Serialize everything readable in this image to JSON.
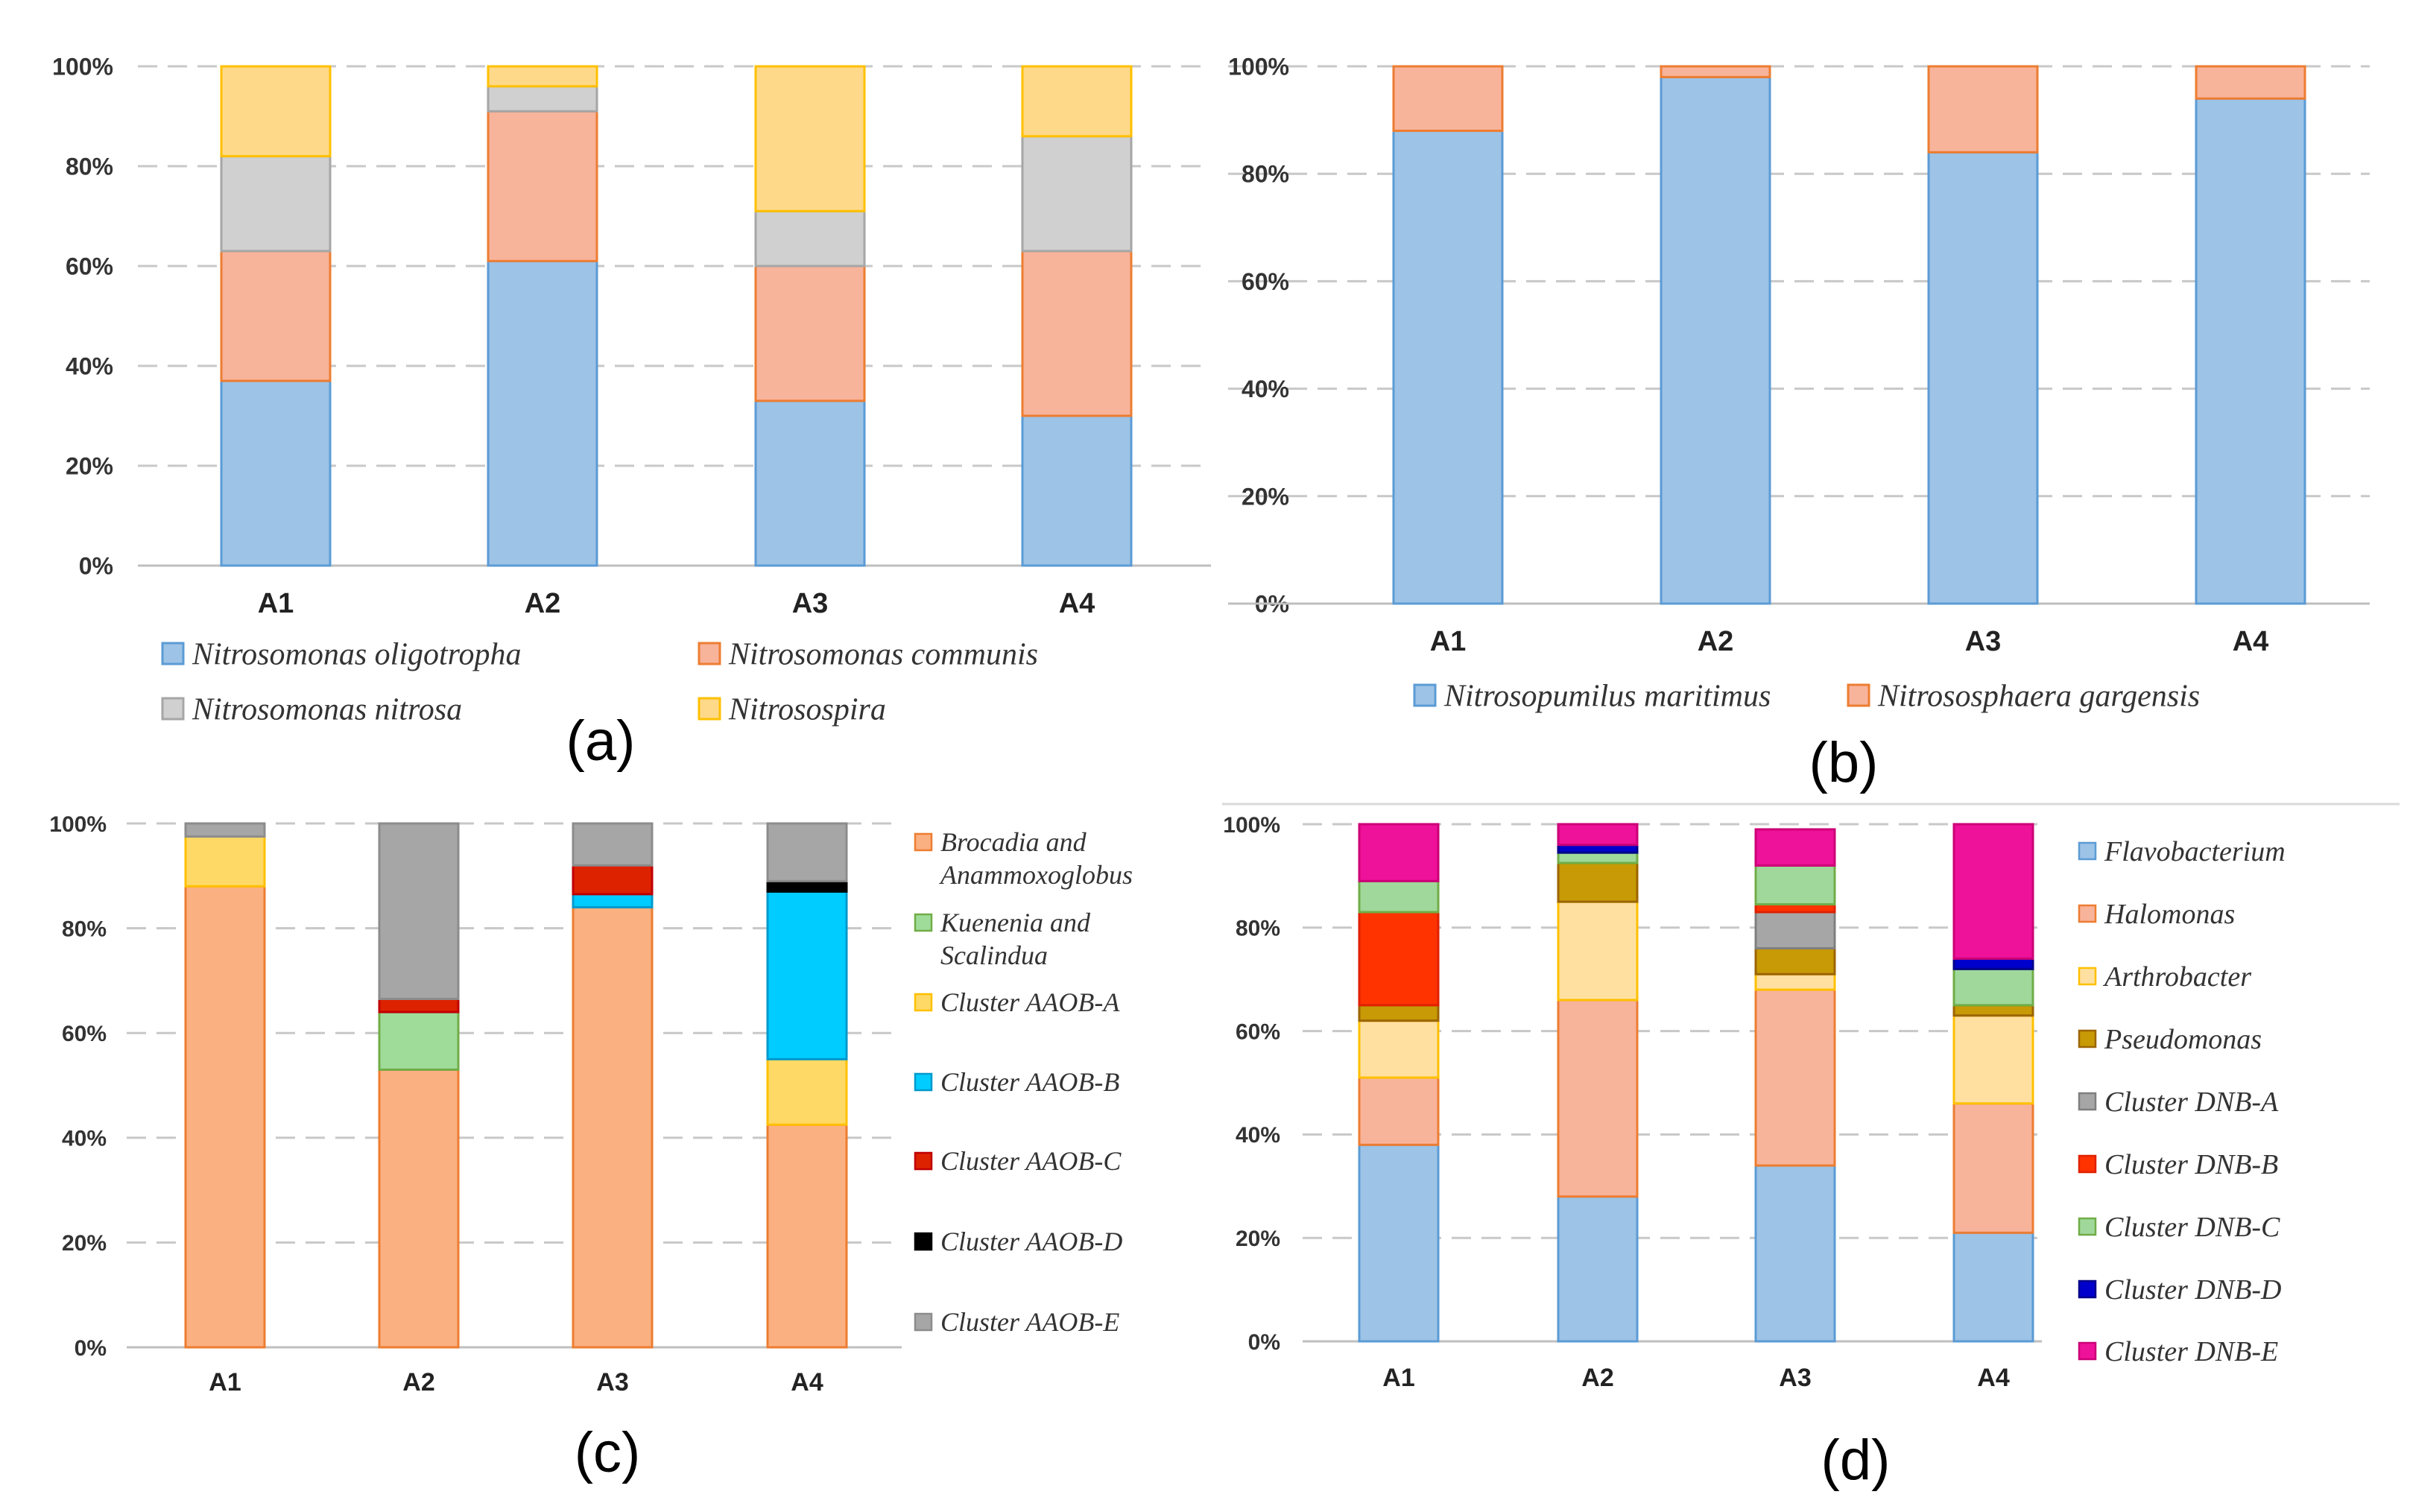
{
  "figure": {
    "panels": [
      {
        "label": "(a)"
      },
      {
        "label": "(b)"
      },
      {
        "label": "(c)"
      },
      {
        "label": "(d)"
      }
    ]
  },
  "chart_data": [
    {
      "type": "bar",
      "stacked": true,
      "panel_label": "(a)",
      "categories": [
        "A1",
        "A2",
        "A3",
        "A4"
      ],
      "ylim": [
        0,
        100
      ],
      "yticks": [
        "0%",
        "20%",
        "40%",
        "60%",
        "80%",
        "100%"
      ],
      "grid": true,
      "legend_position": "bottom",
      "series": [
        {
          "name": "Nitrosomonas oligotropha",
          "values": [
            37,
            61,
            33,
            30
          ],
          "fill": "#9dc3e6",
          "stroke": "#5b9bd5"
        },
        {
          "name": "Nitrosomonas communis",
          "values": [
            26,
            30,
            27,
            33
          ],
          "fill": "#f8b39b",
          "stroke": "#ed7d31"
        },
        {
          "name": "Nitrosomonas nitrosa",
          "values": [
            19,
            5,
            11,
            23
          ],
          "fill": "#d0d0d0",
          "stroke": "#a6a6a6"
        },
        {
          "name": "Nitrosospira",
          "values": [
            18,
            4,
            29,
            14
          ],
          "fill": "#ffd98a",
          "stroke": "#ffc000"
        }
      ]
    },
    {
      "type": "bar",
      "stacked": true,
      "panel_label": "(b)",
      "categories": [
        "A1",
        "A2",
        "A3",
        "A4"
      ],
      "ylim": [
        0,
        100
      ],
      "yticks": [
        "0%",
        "20%",
        "40%",
        "60%",
        "80%",
        "100%"
      ],
      "grid": true,
      "legend_position": "bottom",
      "series": [
        {
          "name": "Nitrosopumilus maritimus",
          "values": [
            88,
            98,
            84,
            94
          ],
          "fill": "#9dc3e6",
          "stroke": "#5b9bd5"
        },
        {
          "name": "Nitrososphaera gargensis",
          "values": [
            12,
            2,
            16,
            6
          ],
          "fill": "#f8b39b",
          "stroke": "#ed7d31"
        }
      ]
    },
    {
      "type": "bar",
      "stacked": true,
      "panel_label": "(c)",
      "categories": [
        "A1",
        "A2",
        "A3",
        "A4"
      ],
      "ylim": [
        0,
        100
      ],
      "yticks": [
        "0%",
        "20%",
        "40%",
        "60%",
        "80%",
        "100%"
      ],
      "grid": true,
      "legend_position": "right",
      "series": [
        {
          "name": "Brocadia and Anammoxoglobus",
          "lines": [
            "Brocadia and",
            "Anammoxoglobus"
          ],
          "values": [
            88,
            53,
            84,
            42.5
          ],
          "fill": "#fbb081",
          "stroke": "#ed7d31"
        },
        {
          "name": "Kuenenia and Scalindua",
          "lines": [
            "Kuenenia and",
            "Scalindua"
          ],
          "values": [
            0,
            11,
            0,
            0
          ],
          "fill": "#9fdc9a",
          "stroke": "#70ad47"
        },
        {
          "name": "Cluster AAOB-A",
          "lines": [
            "Cluster AAOB-A"
          ],
          "values": [
            9.5,
            0,
            0,
            12.5
          ],
          "fill": "#ffd966",
          "stroke": "#ffc000"
        },
        {
          "name": "Cluster AAOB-B",
          "lines": [
            "Cluster AAOB-B"
          ],
          "values": [
            0,
            0,
            2.5,
            32
          ],
          "fill": "#00ccff",
          "stroke": "#0099cc"
        },
        {
          "name": "Cluster AAOB-C",
          "lines": [
            "Cluster AAOB-C"
          ],
          "values": [
            0,
            2.5,
            5.5,
            0
          ],
          "fill": "#dd2200",
          "stroke": "#c00000"
        },
        {
          "name": "Cluster AAOB-D",
          "lines": [
            "Cluster AAOB-D"
          ],
          "values": [
            0,
            0,
            0,
            2
          ],
          "fill": "#000000",
          "stroke": "#000000"
        },
        {
          "name": "Cluster AAOB-E",
          "lines": [
            "Cluster AAOB-E"
          ],
          "values": [
            2.5,
            33.5,
            8,
            11
          ],
          "fill": "#a6a6a6",
          "stroke": "#8c8c8c"
        }
      ]
    },
    {
      "type": "bar",
      "stacked": true,
      "panel_label": "(d)",
      "categories": [
        "A1",
        "A2",
        "A3",
        "A4"
      ],
      "ylim": [
        0,
        100
      ],
      "yticks": [
        "0%",
        "20%",
        "40%",
        "60%",
        "80%",
        "100%"
      ],
      "grid": true,
      "legend_position": "right",
      "series": [
        {
          "name": "Flavobacterium",
          "values": [
            38,
            28,
            34,
            21
          ],
          "fill": "#9dc3e6",
          "stroke": "#5b9bd5"
        },
        {
          "name": "Halomonas",
          "values": [
            13,
            38,
            34,
            25
          ],
          "fill": "#f8b39b",
          "stroke": "#ed7d31"
        },
        {
          "name": "Arthrobacter",
          "values": [
            11,
            19,
            3,
            17
          ],
          "fill": "#ffe0a0",
          "stroke": "#ffc000"
        },
        {
          "name": "Pseudomonas",
          "values": [
            3,
            7.5,
            5,
            2
          ],
          "fill": "#c79a06",
          "stroke": "#9c6500"
        },
        {
          "name": "Cluster DNB-A",
          "values": [
            0,
            0,
            7,
            0
          ],
          "fill": "#a6a6a6",
          "stroke": "#7f7f7f"
        },
        {
          "name": "Cluster DNB-B",
          "values": [
            18,
            0,
            1.5,
            0
          ],
          "fill": "#ff3300",
          "stroke": "#e02000"
        },
        {
          "name": "Cluster DNB-C",
          "values": [
            6,
            2,
            7.5,
            7
          ],
          "fill": "#9fd89a",
          "stroke": "#70ad47"
        },
        {
          "name": "Cluster DNB-D",
          "values": [
            0,
            1.5,
            0,
            2
          ],
          "fill": "#0000cc",
          "stroke": "#00008b"
        },
        {
          "name": "Cluster DNB-E",
          "values": [
            11,
            4,
            7,
            26
          ],
          "fill": "#ee1199",
          "stroke": "#cc0077"
        }
      ]
    }
  ]
}
